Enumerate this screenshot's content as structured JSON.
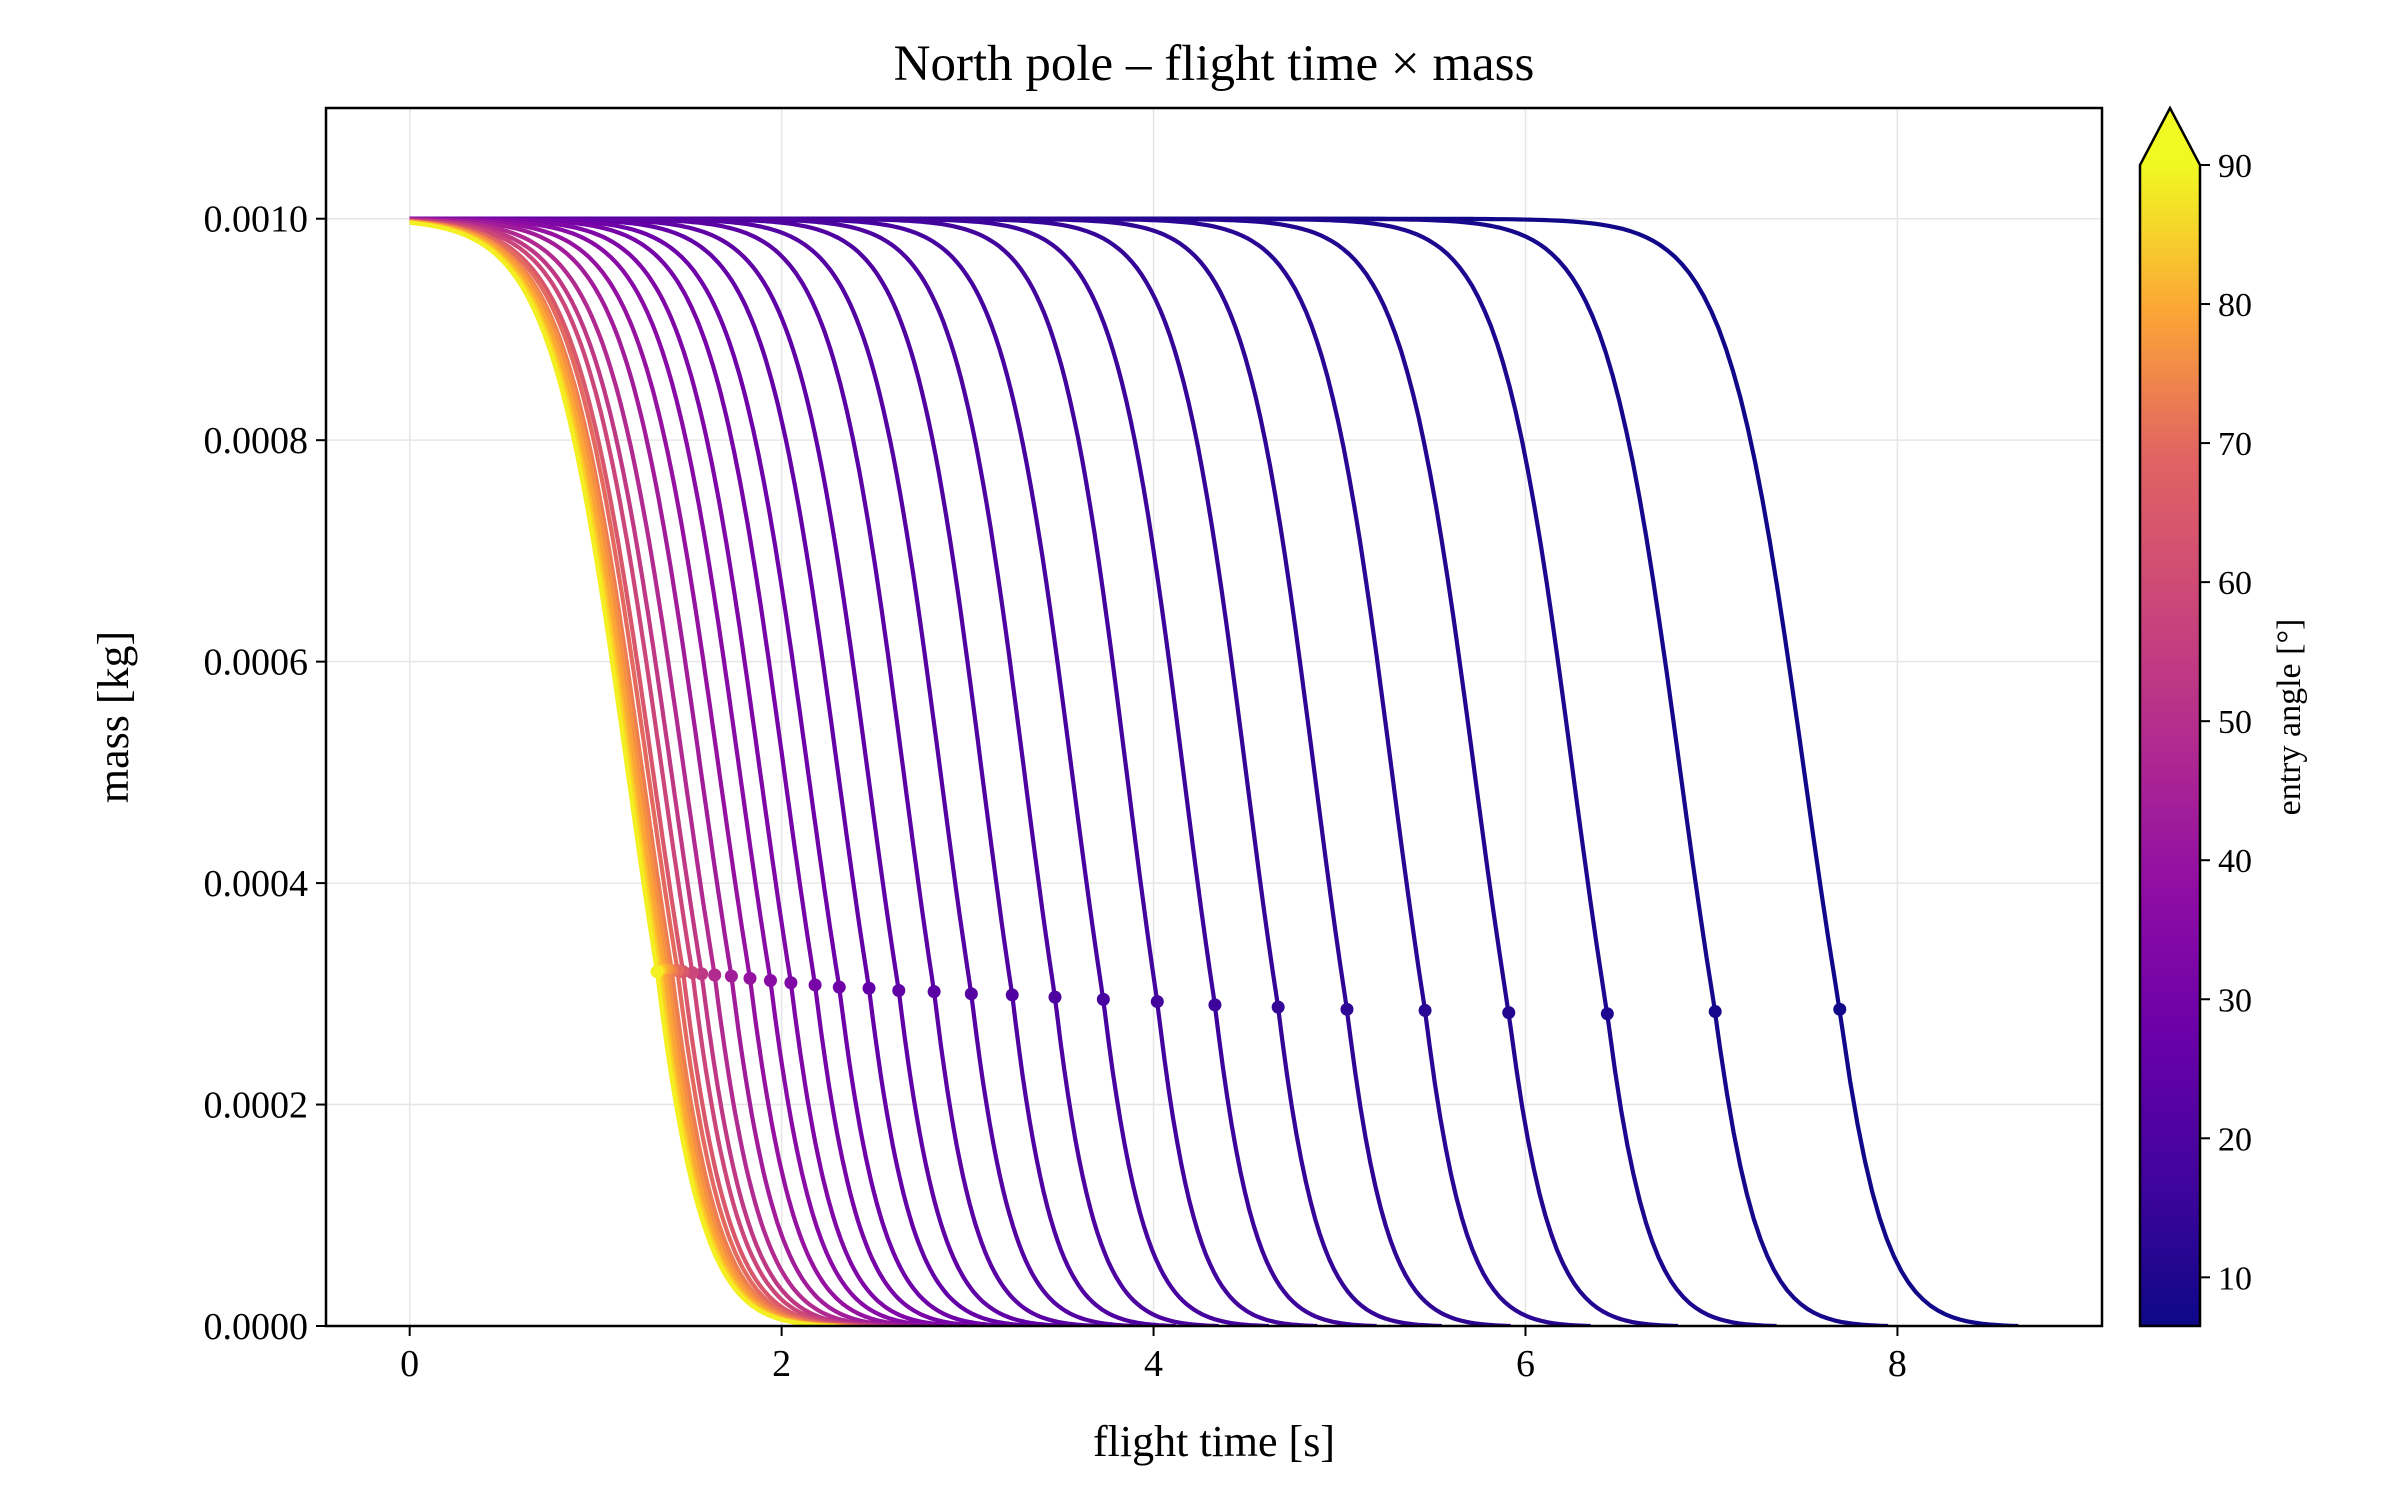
{
  "chart_data": {
    "type": "line",
    "title": "North pole – flight time × mass",
    "xlabel": "flight time [s]",
    "ylabel": "mass [kg]",
    "xlim": [
      -0.45,
      9.1
    ],
    "ylim": [
      0,
      0.0011
    ],
    "x_ticks": [
      0,
      2,
      4,
      6,
      8
    ],
    "x_tick_labels": [
      "0",
      "2",
      "4",
      "6",
      "8"
    ],
    "y_ticks": [
      0,
      0.0002,
      0.0004,
      0.0006,
      0.0008,
      0.001
    ],
    "y_tick_labels": [
      "0.0000",
      "0.0002",
      "0.0004",
      "0.0006",
      "0.0008",
      "0.0010"
    ],
    "grid": true,
    "colormap": "plasma",
    "colorbar": {
      "label": "entry angle [°]",
      "range": [
        6.5,
        90
      ],
      "extend": "max",
      "ticks": [
        10,
        20,
        30,
        40,
        50,
        60,
        70,
        80,
        90
      ],
      "tick_labels": [
        "10",
        "20",
        "30",
        "40",
        "50",
        "60",
        "70",
        "80",
        "90"
      ]
    },
    "initial_mass": 0.001,
    "series_columns": [
      "entry_angle_deg",
      "end_time_s",
      "marker_time_s",
      "marker_mass_kg"
    ],
    "series": [
      [
        7,
        8.65,
        7.69,
        0.000286
      ],
      [
        8,
        7.95,
        7.02,
        0.000284
      ],
      [
        9,
        7.35,
        6.44,
        0.000282
      ],
      [
        10,
        6.82,
        5.91,
        0.000283
      ],
      [
        11,
        6.35,
        5.46,
        0.000285
      ],
      [
        12,
        5.92,
        5.04,
        0.000286
      ],
      [
        13,
        5.55,
        4.67,
        0.000288
      ],
      [
        14,
        5.2,
        4.33,
        0.00029
      ],
      [
        15,
        4.88,
        4.02,
        0.000293
      ],
      [
        16,
        4.62,
        3.73,
        0.000295
      ],
      [
        17,
        4.35,
        3.47,
        0.000297
      ],
      [
        18,
        4.12,
        3.24,
        0.000299
      ],
      [
        19,
        3.92,
        3.02,
        0.0003
      ],
      [
        20,
        3.72,
        2.82,
        0.000302
      ],
      [
        21,
        3.55,
        2.63,
        0.000303
      ],
      [
        22,
        3.4,
        2.47,
        0.000305
      ],
      [
        24,
        3.25,
        2.31,
        0.000306
      ],
      [
        26,
        3.12,
        2.18,
        0.000308
      ],
      [
        28,
        3.0,
        2.05,
        0.00031
      ],
      [
        30,
        2.9,
        1.94,
        0.000312
      ],
      [
        33,
        2.8,
        1.83,
        0.000314
      ],
      [
        36,
        2.7,
        1.73,
        0.000316
      ],
      [
        40,
        2.62,
        1.64,
        0.000317
      ],
      [
        44,
        2.55,
        1.57,
        0.000318
      ],
      [
        48,
        2.5,
        1.52,
        0.000319
      ],
      [
        53,
        2.45,
        1.47,
        0.00032
      ],
      [
        58,
        2.41,
        1.44,
        0.000321
      ],
      [
        63,
        2.38,
        1.41,
        0.000321
      ],
      [
        68,
        2.35,
        1.39,
        0.000322
      ],
      [
        73,
        2.33,
        1.37,
        0.000322
      ],
      [
        78,
        2.31,
        1.35,
        0.000322
      ],
      [
        83,
        2.3,
        1.34,
        0.000321
      ],
      [
        88,
        2.29,
        1.33,
        0.00032
      ]
    ]
  }
}
